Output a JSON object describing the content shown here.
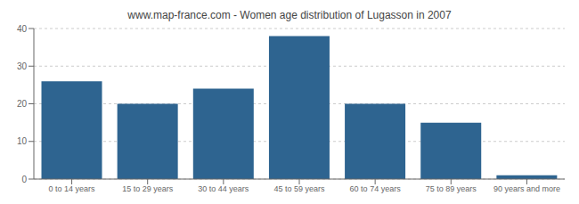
{
  "chart_data": {
    "type": "bar",
    "title": "www.map-france.com - Women age distribution of Lugasson in 2007",
    "categories": [
      "0 to 14 years",
      "15 to 29 years",
      "30 to 44 years",
      "45 to 59 years",
      "60 to 74 years",
      "75 to 89 years",
      "90 years and more"
    ],
    "values": [
      26,
      20,
      24,
      38,
      20,
      15,
      1
    ],
    "color": "#2e6490",
    "ylim": [
      0,
      40
    ],
    "yticks": [
      0,
      10,
      20,
      30,
      40
    ],
    "grid": true
  }
}
